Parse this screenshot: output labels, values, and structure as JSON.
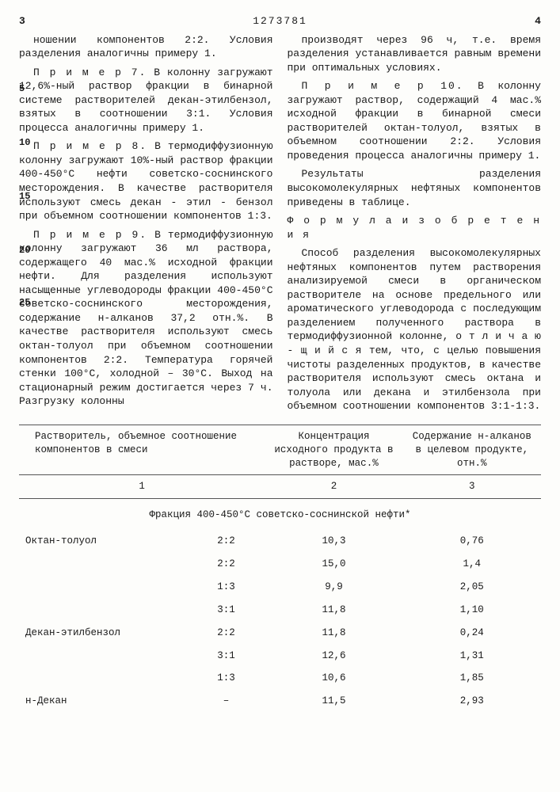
{
  "header": {
    "left_num": "3",
    "doc_id": "1273781",
    "right_num": "4"
  },
  "side_markers": [
    "5",
    "10",
    "15",
    "20",
    "25"
  ],
  "left_col": {
    "p1": "ношении компонентов 2:2. Условия разделения аналогичны примеру 1.",
    "p2_label": "П р и м е р  7.",
    "p2": " В колонну загружают 12,6%-ный раствор фракции в бинарной системе растворителей декан-этилбензол, взятых в соотношении 3:1. Условия процесса аналогичны примеру 1.",
    "p3_label": "П р и м е р  8.",
    "p3": " В термодиффузионную колонну загружают 10%-ный раствор фракции 400-450°С нефти советско-соснинского месторождения. В качестве растворителя используют смесь декан - этил - бензол при объемном соотношении компонентов 1:3.",
    "p4_label": "П р и м е р  9.",
    "p4": " В термодиффузионную колонну загружают 36 мл раствора, содержащего 40 мас.% исходной фракции нефти. Для разделения используют насыщенные углеводороды фракции 400-450°С советско-соснинского месторождения, содержание н-алканов 37,2 отн.%. В качестве растворителя используют смесь октан-толуол при объемном соотношении компонентов 2:2. Температура горячей стенки 100°С, холодной – 30°С. Выход на стационарный режим достигается через 7 ч. Разгрузку колонны"
  },
  "right_col": {
    "p1": "производят через 96 ч, т.е. время разделения устанавливается равным времени при оптимальных условиях.",
    "p2_label": "П р и м е р  10.",
    "p2": " В колонну загружают раствор, содержащий 4 мас.% исходной фракции в бинарной смеси растворителей октан-толуол, взятых в объемном соотношении 2:2. Условия проведения процесса аналогичны примеру 1.",
    "p3": "Результаты разделения высокомолекулярных нефтяных компонентов приведены в таблице.",
    "p4": "Ф о р м у л а  и з о б р е т е н и я",
    "p5": "Способ разделения высокомолекулярных нефтяных компонентов путем растворения анализируемой смеси в органическом растворителе на основе предельного или ароматического углеводорода с последующим разделением полученного раствора в термодиффузионной колонне, о т л и ч а ю - щ и й с я  тем, что, с целью повышения чистоты разделенных продуктов, в качестве растворителя используют смесь октана и толуола или декана и этилбензола при объемном соотношении компонентов 3:1-1:3."
  },
  "table": {
    "headers": {
      "c1": "Растворитель, объемное соотношение компонентов в смеси",
      "c2": "Концентрация исходного продукта в растворе, мас.%",
      "c3": "Содержание н-алканов в целевом продукте, отн.%"
    },
    "numrow": {
      "c1": "1",
      "c2": "2",
      "c3": "3"
    },
    "section": "Фракция 400-450°С советско-соснинской нефти*",
    "rows": [
      {
        "solvent": "Октан-толуол",
        "ratio": "2:2",
        "conc": "10,3",
        "content": "0,76"
      },
      {
        "solvent": "",
        "ratio": "2:2",
        "conc": "15,0",
        "content": "1,4"
      },
      {
        "solvent": "",
        "ratio": "1:3",
        "conc": "9,9",
        "content": "2,05"
      },
      {
        "solvent": "",
        "ratio": "3:1",
        "conc": "11,8",
        "content": "1,10"
      },
      {
        "solvent": "Декан-этилбензол",
        "ratio": "2:2",
        "conc": "11,8",
        "content": "0,24"
      },
      {
        "solvent": "",
        "ratio": "3:1",
        "conc": "12,6",
        "content": "1,31"
      },
      {
        "solvent": "",
        "ratio": "1:3",
        "conc": "10,6",
        "content": "1,85"
      },
      {
        "solvent": "н-Декан",
        "ratio": "–",
        "conc": "11,5",
        "content": "2,93"
      }
    ]
  }
}
